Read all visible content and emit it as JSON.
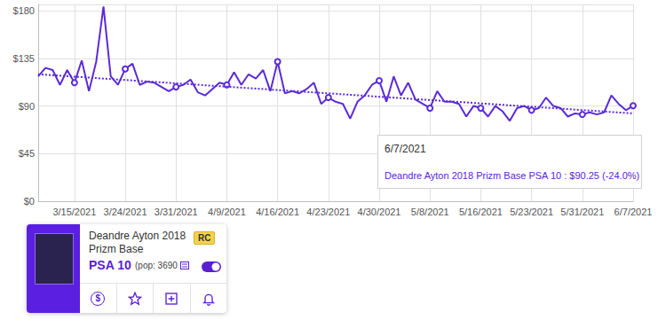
{
  "chart_data": {
    "type": "line",
    "categories": [
      null,
      null,
      null,
      null,
      null,
      "3/15/2021",
      null,
      null,
      null,
      null,
      null,
      null,
      "3/24/2021",
      null,
      null,
      null,
      null,
      null,
      null,
      "3/31/2021",
      null,
      null,
      null,
      null,
      null,
      null,
      "4/9/2021",
      null,
      null,
      null,
      null,
      null,
      null,
      "4/16/2021",
      null,
      null,
      null,
      null,
      null,
      null,
      "4/23/2021",
      null,
      null,
      null,
      null,
      null,
      null,
      "4/30/2021",
      null,
      null,
      null,
      null,
      null,
      null,
      "5/8/2021",
      null,
      null,
      null,
      null,
      null,
      null,
      "5/16/2021",
      null,
      null,
      null,
      null,
      null,
      null,
      "5/23/2021",
      null,
      null,
      null,
      null,
      null,
      null,
      "5/31/2021",
      null,
      null,
      null,
      null,
      null,
      null,
      "6/7/2021"
    ],
    "values": [
      118,
      126,
      124,
      110,
      124,
      112,
      133,
      104,
      132,
      184,
      118,
      110,
      125,
      130,
      110,
      113,
      112,
      108,
      104,
      108,
      110,
      115,
      103,
      100,
      106,
      112,
      110,
      122,
      110,
      120,
      116,
      124,
      104,
      132,
      102,
      104,
      102,
      106,
      112,
      92,
      98,
      94,
      92,
      78,
      94,
      100,
      110,
      114,
      94,
      118,
      100,
      112,
      96,
      92,
      88,
      104,
      94,
      94,
      92,
      80,
      90,
      88,
      80,
      90,
      85,
      76,
      88,
      90,
      86,
      88,
      98,
      90,
      88,
      80,
      83,
      82,
      84,
      82,
      84,
      100,
      92,
      86,
      90.25
    ],
    "color": "#5b2bd6",
    "marker": "circle",
    "trend_line": {
      "values": [
        120,
        83
      ],
      "line_style": "dotted",
      "color": "#5b2bd6"
    },
    "ylim": [
      0,
      186
    ],
    "yticks": [
      {
        "value": 0,
        "label": "$0"
      },
      {
        "value": 45,
        "label": "$45"
      },
      {
        "value": 90,
        "label": "$90"
      },
      {
        "value": 135,
        "label": "$135"
      },
      {
        "value": 180,
        "label": "$180"
      }
    ],
    "grid": true,
    "annotations": [
      "6/7/2021",
      "Deandre Ayton 2018 Prizm Base PSA 10 : $90.25 (-24.0%)"
    ]
  },
  "card": {
    "name": "Deandre Ayton 2018 Prizm Base",
    "badge": "RC",
    "grade": "PSA 10",
    "pop": "(pop: 3690",
    "dollar_icon": "$"
  }
}
